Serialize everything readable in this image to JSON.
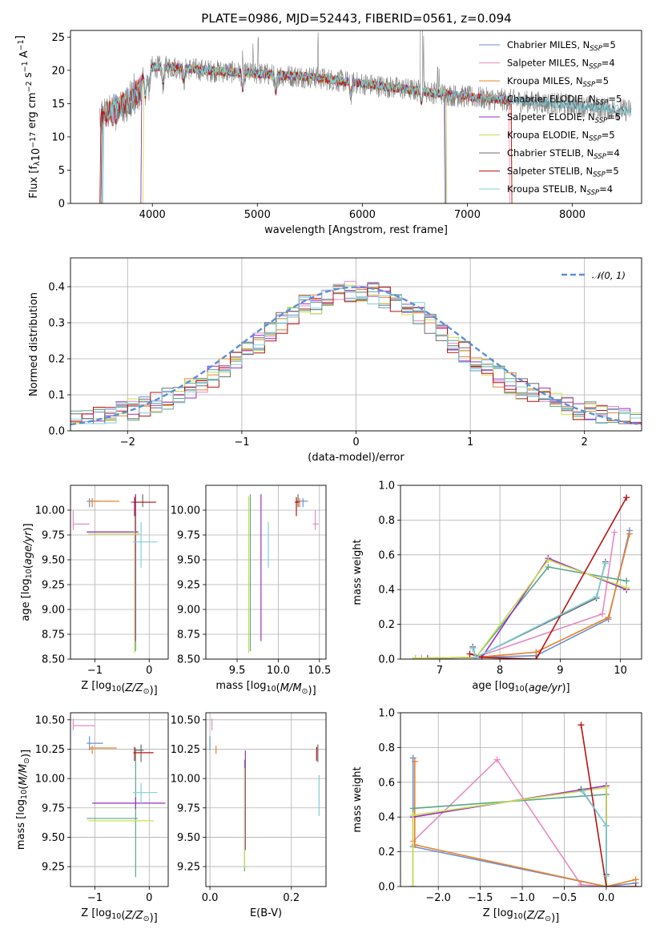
{
  "title": "PLATE=0986, MJD=52443, FIBERID=0561, z=0.094",
  "colors": {
    "Chabrier MILES": "#6b8fd6",
    "Salpeter MILES": "#e78ac3",
    "Kroupa MILES": "#e8832a",
    "Chabrier ELODIE": "#5aa78b",
    "Salpeter ELODIE": "#9a2fc4",
    "Kroupa ELODIE": "#c8e04a",
    "Chabrier STELIB": "#6e6e6e",
    "Salpeter STELIB": "#b81414",
    "Kroupa STELIB": "#7ed0dc",
    "gaussian": "#5b8fd9",
    "spectrum_gray": "#808080"
  },
  "chart_data": [
    {
      "id": "spectrum",
      "type": "line",
      "title": "PLATE=0986, MJD=52443, FIBERID=0561, z=0.094",
      "xlabel": "wavelength [Angstrom, rest frame]",
      "ylabel": "Flux [f_λ10^-17 erg cm^-2 s^-1 A^-1]",
      "xlim": [
        3220,
        8660
      ],
      "ylim": [
        0,
        26
      ],
      "xticks": [
        4000,
        5000,
        6000,
        7000,
        8000
      ],
      "yticks": [
        0,
        5,
        10,
        15,
        20,
        25
      ],
      "grid": false,
      "legend_position": "upper right",
      "continuum": {
        "x": [
          3500,
          3700,
          3900,
          4000,
          4200,
          4500,
          5000,
          5500,
          6000,
          6500,
          7000,
          7400,
          8000,
          8500
        ],
        "y": [
          15.0,
          16.5,
          19.0,
          20.5,
          20.5,
          20.0,
          19.5,
          19.0,
          18.0,
          17.0,
          16.0,
          15.5,
          14.8,
          14.0
        ]
      },
      "series": [
        {
          "name": "Chabrier MILES",
          "nssp": "5"
        },
        {
          "name": "Salpeter MILES",
          "nssp": "4"
        },
        {
          "name": "Kroupa MILES",
          "nssp": "5"
        },
        {
          "name": "Chabrier ELODIE",
          "nssp": "5"
        },
        {
          "name": "Salpeter ELODIE",
          "nssp": "5"
        },
        {
          "name": "Kroupa ELODIE",
          "nssp": "5"
        },
        {
          "name": "Chabrier STELIB",
          "nssp": "4"
        },
        {
          "name": "Salpeter STELIB",
          "nssp": "5"
        },
        {
          "name": "Kroupa STELIB",
          "nssp": "4"
        }
      ]
    },
    {
      "id": "residuals",
      "type": "histogram",
      "xlabel": "(data-model)/error",
      "ylabel": "Normed distribution",
      "xlim": [
        -2.5,
        2.5
      ],
      "ylim": [
        0,
        0.48
      ],
      "xticks": [
        -2,
        -1,
        0,
        1,
        2
      ],
      "yticks": [
        0.0,
        0.1,
        0.2,
        0.3,
        0.4
      ],
      "grid": true,
      "legend_position": "upper right",
      "legend_label": "N(0,1)",
      "bin_width": 0.1,
      "bins_start": -2.5
    },
    {
      "id": "age_vs_Z",
      "type": "errorbar",
      "xlabel": "Z [log10(Z/Z⊙)]",
      "ylabel": "age  [log10(age/yr)]",
      "xlim": [
        -1.45,
        0.35
      ],
      "ylim": [
        8.5,
        10.25
      ],
      "xticks": [
        -1,
        0
      ],
      "yticks": [
        8.5,
        8.75,
        9.0,
        9.25,
        9.5,
        9.75,
        10.0
      ],
      "grid": true,
      "points": [
        {
          "series": "Chabrier MILES",
          "x": -1.1,
          "xerr": [
            0.05,
            0.2
          ],
          "y": 10.09,
          "yerr": [
            0.06,
            0.03
          ]
        },
        {
          "series": "Salpeter MILES",
          "x": -1.4,
          "xerr": [
            0.0,
            0.3
          ],
          "y": 9.86,
          "yerr": [
            0.06,
            0.14
          ]
        },
        {
          "series": "Kroupa MILES",
          "x": -1.05,
          "xerr": [
            0.05,
            0.5
          ],
          "y": 10.09,
          "yerr": [
            0.06,
            0.03
          ]
        },
        {
          "series": "Chabrier ELODIE",
          "x": -0.25,
          "xerr": [
            0.9,
            0.04
          ],
          "y": 9.78,
          "yerr": [
            1.2,
            0.38
          ]
        },
        {
          "series": "Salpeter ELODIE",
          "x": -0.25,
          "xerr": [
            0.9,
            0.05
          ],
          "y": 9.78,
          "yerr": [
            1.1,
            0.38
          ]
        },
        {
          "series": "Kroupa ELODIE",
          "x": -0.27,
          "xerr": [
            0.85,
            0.1
          ],
          "y": 9.76,
          "yerr": [
            1.2,
            0.38
          ]
        },
        {
          "series": "Chabrier STELIB",
          "x": -0.12,
          "xerr": [
            0.22,
            0.2
          ],
          "y": 10.08,
          "yerr": [
            0.05,
            0.08
          ]
        },
        {
          "series": "Salpeter STELIB",
          "x": -0.27,
          "xerr": [
            0.02,
            0.4
          ],
          "y": 10.08,
          "yerr": [
            0.14,
            0.05
          ]
        },
        {
          "series": "Kroupa STELIB",
          "x": -0.15,
          "xerr": [
            0.15,
            0.3
          ],
          "y": 9.68,
          "yerr": [
            0.26,
            0.2
          ]
        }
      ]
    },
    {
      "id": "age_vs_mass",
      "type": "errorbar",
      "xlabel": "mass [log10(M/M⊙)]",
      "ylabel": "",
      "xlim": [
        9.12,
        10.58
      ],
      "ylim": [
        8.5,
        10.25
      ],
      "xticks": [
        9.5,
        10.0,
        10.5
      ],
      "yticks": [
        8.5,
        8.75,
        9.0,
        9.25,
        9.5,
        9.75,
        10.0
      ],
      "grid": true,
      "points": [
        {
          "series": "Chabrier MILES",
          "x": 10.3,
          "xerr": [
            0.06,
            0.06
          ],
          "y": 10.09,
          "yerr": [
            0.06,
            0.03
          ]
        },
        {
          "series": "Salpeter MILES",
          "x": 10.45,
          "xerr": [
            0.03,
            0.04
          ],
          "y": 9.86,
          "yerr": [
            0.06,
            0.14
          ]
        },
        {
          "series": "Kroupa MILES",
          "x": 10.26,
          "xerr": [
            0.04,
            0.02
          ],
          "y": 10.09,
          "yerr": [
            0.06,
            0.03
          ]
        },
        {
          "series": "Chabrier ELODIE",
          "x": 9.66,
          "xerr": [
            0.0,
            0.0
          ],
          "y": 9.78,
          "yerr": [
            1.2,
            0.38
          ]
        },
        {
          "series": "Salpeter ELODIE",
          "x": 9.79,
          "xerr": [
            0.0,
            0.0
          ],
          "y": 9.78,
          "yerr": [
            1.1,
            0.38
          ]
        },
        {
          "series": "Kroupa ELODIE",
          "x": 9.64,
          "xerr": [
            0.0,
            0.0
          ],
          "y": 9.76,
          "yerr": [
            1.2,
            0.38
          ]
        },
        {
          "series": "Chabrier STELIB",
          "x": 10.24,
          "xerr": [
            0.02,
            0.02
          ],
          "y": 10.08,
          "yerr": [
            0.05,
            0.08
          ]
        },
        {
          "series": "Salpeter STELIB",
          "x": 10.22,
          "xerr": [
            0.02,
            0.02
          ],
          "y": 10.08,
          "yerr": [
            0.14,
            0.05
          ]
        },
        {
          "series": "Kroupa STELIB",
          "x": 9.88,
          "xerr": [
            0.0,
            0.0
          ],
          "y": 9.68,
          "yerr": [
            0.26,
            0.2
          ]
        }
      ]
    },
    {
      "id": "weight_vs_age",
      "type": "line",
      "xlabel": "age  [log10(age/yr)]",
      "ylabel": "mass weight",
      "xlim": [
        6.35,
        10.35
      ],
      "ylim": [
        0,
        1.0
      ],
      "xticks": [
        7,
        8,
        9,
        10
      ],
      "yticks": [
        0.0,
        0.2,
        0.4,
        0.6,
        0.8,
        1.0
      ],
      "grid": true,
      "series": [
        {
          "name": "Chabrier MILES",
          "x": [
            6.6,
            7.6,
            8.6,
            9.8,
            10.15
          ],
          "y": [
            0.005,
            0.01,
            0.02,
            0.23,
            0.74
          ]
        },
        {
          "name": "Salpeter MILES",
          "x": [
            6.7,
            7.6,
            9.7,
            9.9
          ],
          "y": [
            0.005,
            0.01,
            0.26,
            0.73
          ]
        },
        {
          "name": "Kroupa MILES",
          "x": [
            6.6,
            7.6,
            8.6,
            9.8,
            10.15
          ],
          "y": [
            0.005,
            0.01,
            0.04,
            0.24,
            0.72
          ]
        },
        {
          "name": "Chabrier ELODIE",
          "x": [
            6.6,
            7.6,
            8.8,
            10.1,
            10.1
          ],
          "y": [
            0.005,
            0.01,
            0.53,
            0.45,
            0.45
          ]
        },
        {
          "name": "Salpeter ELODIE",
          "x": [
            6.8,
            7.7,
            8.8,
            10.1,
            10.1
          ],
          "y": [
            0.005,
            0.01,
            0.58,
            0.4,
            0.4
          ]
        },
        {
          "name": "Kroupa ELODIE",
          "x": [
            6.6,
            7.6,
            8.8,
            10.1,
            10.1
          ],
          "y": [
            0.005,
            0.01,
            0.57,
            0.41,
            0.41
          ]
        },
        {
          "name": "Chabrier STELIB",
          "x": [
            7.55,
            7.6,
            9.6,
            9.75
          ],
          "y": [
            0.07,
            0.01,
            0.35,
            0.56
          ]
        },
        {
          "name": "Salpeter STELIB",
          "x": [
            7.5,
            7.7,
            8.6,
            10.1
          ],
          "y": [
            0.03,
            0.01,
            0.0,
            0.93
          ]
        },
        {
          "name": "Kroupa STELIB",
          "x": [
            7.55,
            7.6,
            9.6,
            9.75
          ],
          "y": [
            0.06,
            0.01,
            0.36,
            0.55
          ]
        }
      ]
    },
    {
      "id": "mass_vs_Z",
      "type": "errorbar",
      "xlabel": "Z [log10(Z/Z⊙)]",
      "ylabel": "mass [log10(M/M⊙)]",
      "xlim": [
        -1.45,
        0.35
      ],
      "ylim": [
        9.08,
        10.56
      ],
      "xticks": [
        -1,
        0
      ],
      "yticks": [
        9.25,
        9.5,
        9.75,
        10.0,
        10.25,
        10.5
      ],
      "grid": true,
      "points": [
        {
          "series": "Chabrier MILES",
          "x": -1.1,
          "xerr": [
            0.05,
            0.25
          ],
          "y": 10.3,
          "yerr": [
            0.06,
            0.06
          ]
        },
        {
          "series": "Salpeter MILES",
          "x": -1.4,
          "xerr": [
            0.0,
            0.4
          ],
          "y": 10.45,
          "yerr": [
            0.04,
            0.06
          ]
        },
        {
          "series": "Kroupa MILES",
          "x": -1.05,
          "xerr": [
            0.05,
            0.45
          ],
          "y": 10.26,
          "yerr": [
            0.05,
            0.02
          ]
        },
        {
          "series": "Chabrier ELODIE",
          "x": -0.25,
          "xerr": [
            0.9,
            0.04
          ],
          "y": 9.66,
          "yerr": [
            0.5,
            0.6
          ]
        },
        {
          "series": "Salpeter ELODIE",
          "x": -0.25,
          "xerr": [
            0.8,
            0.55
          ],
          "y": 9.79,
          "yerr": [
            0.05,
            0.05
          ]
        },
        {
          "series": "Kroupa ELODIE",
          "x": -0.27,
          "xerr": [
            0.85,
            0.35
          ],
          "y": 9.64,
          "yerr": [
            0.0,
            0.0
          ]
        },
        {
          "series": "Chabrier STELIB",
          "x": -0.15,
          "xerr": [
            0.1,
            0.05
          ],
          "y": 10.24,
          "yerr": [
            0.1,
            0.05
          ]
        },
        {
          "series": "Salpeter STELIB",
          "x": -0.27,
          "xerr": [
            0.02,
            0.35
          ],
          "y": 10.22,
          "yerr": [
            0.07,
            0.05
          ]
        },
        {
          "series": "Kroupa STELIB",
          "x": -0.15,
          "xerr": [
            0.15,
            0.3
          ],
          "y": 9.88,
          "yerr": [
            0.1,
            0.08
          ]
        }
      ]
    },
    {
      "id": "mass_vs_ebv",
      "type": "errorbar",
      "xlabel": "E(B-V)",
      "ylabel": "",
      "xlim": [
        -0.01,
        0.285
      ],
      "ylim": [
        9.08,
        10.56
      ],
      "xticks": [
        0.0,
        0.2
      ],
      "yticks": [
        9.25,
        9.5,
        9.75,
        10.0,
        10.25,
        10.5
      ],
      "grid": true,
      "points": [
        {
          "series": "Chabrier MILES",
          "x": 0.0,
          "xerr": [
            0.0,
            0.0
          ],
          "y": 10.3,
          "yerr": [
            0.06,
            0.06
          ]
        },
        {
          "series": "Salpeter MILES",
          "x": 0.005,
          "xerr": [
            0.0,
            0.0
          ],
          "y": 10.45,
          "yerr": [
            0.04,
            0.06
          ]
        },
        {
          "series": "Kroupa MILES",
          "x": 0.015,
          "xerr": [
            0.0,
            0.0
          ],
          "y": 10.26,
          "yerr": [
            0.05,
            0.02
          ]
        },
        {
          "series": "Chabrier ELODIE",
          "x": 0.085,
          "xerr": [
            0.0,
            0.0
          ],
          "y": 9.66,
          "yerr": [
            0.45,
            0.5
          ]
        },
        {
          "series": "Salpeter ELODIE",
          "x": 0.087,
          "xerr": [
            0.0,
            0.0
          ],
          "y": 9.79,
          "yerr": [
            0.4,
            0.45
          ]
        },
        {
          "series": "Kroupa ELODIE",
          "x": 0.085,
          "xerr": [
            0.0,
            0.0
          ],
          "y": 9.64,
          "yerr": [
            0.4,
            0.45
          ]
        },
        {
          "series": "Chabrier STELIB",
          "x": 0.265,
          "xerr": [
            0.0,
            0.0
          ],
          "y": 10.24,
          "yerr": [
            0.1,
            0.05
          ]
        },
        {
          "series": "Salpeter STELIB",
          "x": 0.262,
          "xerr": [
            0.0,
            0.0
          ],
          "y": 10.22,
          "yerr": [
            0.07,
            0.05
          ]
        },
        {
          "series": "Kroupa STELIB",
          "x": 0.268,
          "xerr": [
            0.0,
            0.0
          ],
          "y": 9.88,
          "yerr": [
            0.2,
            0.15
          ]
        }
      ]
    },
    {
      "id": "weight_vs_Z",
      "type": "line",
      "xlabel": "Z [log10(Z/Z⊙)]",
      "ylabel": "mass weight",
      "xlim": [
        -2.45,
        0.42
      ],
      "ylim": [
        0,
        1.0
      ],
      "xticks": [
        -2.0,
        -1.5,
        -1.0,
        -0.5,
        0.0
      ],
      "yticks": [
        0.0,
        0.2,
        0.4,
        0.6,
        0.8,
        1.0
      ],
      "grid": true,
      "series": [
        {
          "name": "Chabrier MILES",
          "x": [
            -2.3,
            -2.3,
            0.0,
            0.35
          ],
          "y": [
            0.74,
            0.23,
            0.0,
            0.02
          ]
        },
        {
          "name": "Salpeter MILES",
          "x": [
            -2.3,
            -1.3,
            -0.3,
            0.0
          ],
          "y": [
            0.26,
            0.73,
            0.01,
            0.0
          ]
        },
        {
          "name": "Kroupa MILES",
          "x": [
            -2.28,
            -2.28,
            0.0,
            0.35
          ],
          "y": [
            0.72,
            0.24,
            0.0,
            0.04
          ]
        },
        {
          "name": "Chabrier ELODIE",
          "x": [
            -2.3,
            -2.3,
            0.0,
            0.0
          ],
          "y": [
            0.0,
            0.45,
            0.53,
            0.0
          ]
        },
        {
          "name": "Salpeter ELODIE",
          "x": [
            -2.3,
            -2.3,
            0.0,
            0.0
          ],
          "y": [
            0.0,
            0.4,
            0.58,
            0.0
          ]
        },
        {
          "name": "Kroupa ELODIE",
          "x": [
            -2.3,
            -2.3,
            0.0,
            0.0
          ],
          "y": [
            0.0,
            0.41,
            0.57,
            0.0
          ]
        },
        {
          "name": "Chabrier STELIB",
          "x": [
            -0.3,
            0.0,
            0.0
          ],
          "y": [
            0.56,
            0.35,
            0.07
          ]
        },
        {
          "name": "Salpeter STELIB",
          "x": [
            -0.3,
            0.0,
            0.35
          ],
          "y": [
            0.93,
            0.0,
            0.0
          ]
        },
        {
          "name": "Kroupa STELIB",
          "x": [
            -0.28,
            0.0,
            0.0
          ],
          "y": [
            0.55,
            0.35,
            0.06
          ]
        }
      ]
    }
  ]
}
